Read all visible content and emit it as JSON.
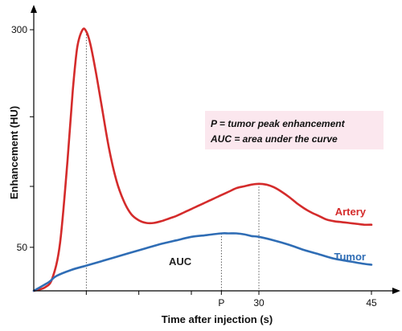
{
  "chart_data": {
    "type": "line",
    "xlabel": "Time after injection (s)",
    "ylabel": "Enhancement (HU)",
    "xlim": [
      0,
      45
    ],
    "ylim": [
      0,
      320
    ],
    "x_ticks": [
      {
        "value": 7,
        "label": ""
      },
      {
        "value": 14,
        "label": ""
      },
      {
        "value": 21,
        "label": ""
      },
      {
        "value": 25,
        "label": "P"
      },
      {
        "value": 30,
        "label": "30"
      },
      {
        "value": 45,
        "label": "45"
      }
    ],
    "y_ticks": [
      {
        "value": 50,
        "label": "50"
      },
      {
        "value": 120,
        "label": ""
      },
      {
        "value": 200,
        "label": ""
      },
      {
        "value": 300,
        "label": "300"
      }
    ],
    "series": [
      {
        "name": "Artery",
        "color": "#d42b2b",
        "x": [
          0,
          1.5,
          2.5,
          3.5,
          4.5,
          5.2,
          5.8,
          6.5,
          7,
          7.5,
          8.2,
          9,
          10,
          11,
          12,
          13,
          14,
          15,
          16,
          17,
          18,
          19,
          20,
          21,
          22,
          23,
          24,
          25,
          26,
          27,
          28,
          29,
          30,
          31,
          32,
          33,
          34,
          35,
          36,
          37,
          38,
          39,
          40,
          41,
          42,
          43,
          44,
          45
        ],
        "values": [
          0,
          4,
          15,
          55,
          150,
          230,
          280,
          300,
          298,
          285,
          255,
          215,
          165,
          127,
          103,
          88,
          81,
          78,
          78,
          80,
          83,
          86,
          90,
          94,
          98,
          102,
          106,
          110,
          114,
          118,
          120,
          122,
          123,
          122,
          119,
          114,
          108,
          101,
          95,
          90,
          86,
          82,
          80,
          79,
          78,
          77,
          76,
          76
        ]
      },
      {
        "name": "Tumor",
        "color": "#2f6db5",
        "x": [
          0,
          2,
          3,
          5,
          7,
          9,
          11,
          13,
          15,
          17,
          19,
          21,
          23,
          25,
          26,
          27,
          28,
          29,
          30,
          32,
          34,
          36,
          38,
          40,
          42,
          44,
          45
        ],
        "values": [
          0,
          10,
          17,
          24,
          29,
          34,
          39,
          44,
          49,
          54,
          58,
          62,
          64,
          66,
          66,
          66,
          65,
          63,
          62,
          58,
          53,
          47,
          42,
          37,
          34,
          31,
          30
        ]
      }
    ],
    "guide_lines": [
      {
        "x": 7,
        "series": "Artery"
      },
      {
        "x": 25,
        "series": "Tumor"
      },
      {
        "x": 30,
        "series": "Artery"
      }
    ],
    "annotations": {
      "auc_label": "AUC",
      "legend_line1": "P = tumor peak enhancement",
      "legend_line2": "AUC = area under the curve"
    },
    "grid": false
  }
}
